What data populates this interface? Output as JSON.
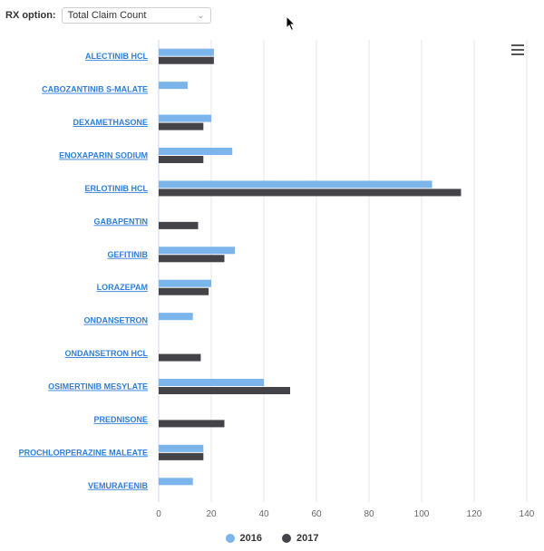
{
  "controls": {
    "rx_label": "RX option:",
    "rx_selected": "Total Claim Count"
  },
  "colors": {
    "s2016": "#7cb5ec",
    "s2017": "#434348",
    "link": "#2f7ed8"
  },
  "chart_data": {
    "type": "bar",
    "orientation": "horizontal",
    "categories": [
      "ALECTINIB HCL",
      "CABOZANTINIB S-MALATE",
      "DEXAMETHASONE",
      "ENOXAPARIN SODIUM",
      "ERLOTINIB HCL",
      "GABAPENTIN",
      "GEFITINIB",
      "LORAZEPAM",
      "ONDANSETRON",
      "ONDANSETRON HCL",
      "OSIMERTINIB MESYLATE",
      "PREDNISONE",
      "PROCHLORPERAZINE MALEATE",
      "VEMURAFENIB"
    ],
    "series": [
      {
        "name": "2016",
        "values": [
          21,
          11,
          20,
          28,
          104,
          null,
          29,
          20,
          13,
          null,
          40,
          null,
          17,
          13
        ]
      },
      {
        "name": "2017",
        "values": [
          21,
          null,
          17,
          17,
          115,
          15,
          25,
          19,
          null,
          16,
          50,
          25,
          17,
          null
        ]
      }
    ],
    "xlim": [
      0,
      140
    ],
    "xticks": [
      0,
      20,
      40,
      60,
      80,
      100,
      120,
      140
    ],
    "grid": "vertical",
    "legend": "bottom-center"
  }
}
